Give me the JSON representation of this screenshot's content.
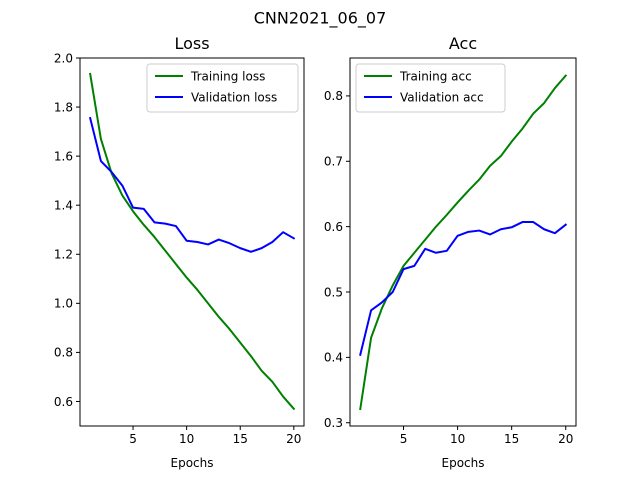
{
  "figure_title": "CNN2021_06_07",
  "chart_data": [
    {
      "type": "line",
      "title": "Loss",
      "xlabel": "Epochs",
      "ylabel": "",
      "xlim": [
        0.05,
        20.95
      ],
      "ylim": [
        0.5,
        2.0
      ],
      "xticks": [
        5,
        10,
        15,
        20
      ],
      "xtick_labels": [
        "5",
        "10",
        "15",
        "20"
      ],
      "yticks": [
        0.6,
        0.8,
        1.0,
        1.2,
        1.4,
        1.6,
        1.8,
        2.0
      ],
      "ytick_labels": [
        "0.6",
        "0.8",
        "1.0",
        "1.2",
        "1.4",
        "1.6",
        "1.8",
        "2.0"
      ],
      "grid": false,
      "legend_position": "top-right",
      "x": [
        1,
        2,
        3,
        4,
        5,
        6,
        7,
        8,
        9,
        10,
        11,
        12,
        13,
        14,
        15,
        16,
        17,
        18,
        19,
        20
      ],
      "series": [
        {
          "name": "Training loss",
          "color": "#008000",
          "values": [
            1.935,
            1.67,
            1.53,
            1.44,
            1.375,
            1.32,
            1.27,
            1.215,
            1.16,
            1.105,
            1.055,
            1.0,
            0.945,
            0.895,
            0.84,
            0.785,
            0.725,
            0.68,
            0.62,
            0.57
          ]
        },
        {
          "name": "Validation loss",
          "color": "#0000ff",
          "values": [
            1.755,
            1.58,
            1.535,
            1.48,
            1.39,
            1.385,
            1.33,
            1.325,
            1.315,
            1.255,
            1.25,
            1.24,
            1.26,
            1.245,
            1.225,
            1.21,
            1.225,
            1.25,
            1.29,
            1.265
          ]
        }
      ]
    },
    {
      "type": "line",
      "title": "Acc",
      "xlabel": "Epochs",
      "ylabel": "",
      "xlim": [
        0.05,
        20.95
      ],
      "ylim": [
        0.295,
        0.858
      ],
      "xticks": [
        5,
        10,
        15,
        20
      ],
      "xtick_labels": [
        "5",
        "10",
        "15",
        "20"
      ],
      "yticks": [
        0.3,
        0.4,
        0.5,
        0.6,
        0.7,
        0.8
      ],
      "ytick_labels": [
        "0.3",
        "0.4",
        "0.5",
        "0.6",
        "0.7",
        "0.8"
      ],
      "grid": false,
      "legend_position": "top-left",
      "x": [
        1,
        2,
        3,
        4,
        5,
        6,
        7,
        8,
        9,
        10,
        11,
        12,
        13,
        14,
        15,
        16,
        17,
        18,
        19,
        20
      ],
      "series": [
        {
          "name": "Training acc",
          "color": "#008000",
          "values": [
            0.321,
            0.43,
            0.475,
            0.51,
            0.54,
            0.56,
            0.58,
            0.6,
            0.618,
            0.637,
            0.655,
            0.672,
            0.693,
            0.708,
            0.73,
            0.75,
            0.773,
            0.789,
            0.812,
            0.831
          ]
        },
        {
          "name": "Validation acc",
          "color": "#0000ff",
          "values": [
            0.404,
            0.472,
            0.484,
            0.5,
            0.535,
            0.54,
            0.566,
            0.56,
            0.563,
            0.586,
            0.592,
            0.594,
            0.588,
            0.596,
            0.599,
            0.607,
            0.607,
            0.596,
            0.59,
            0.603
          ]
        }
      ]
    }
  ]
}
